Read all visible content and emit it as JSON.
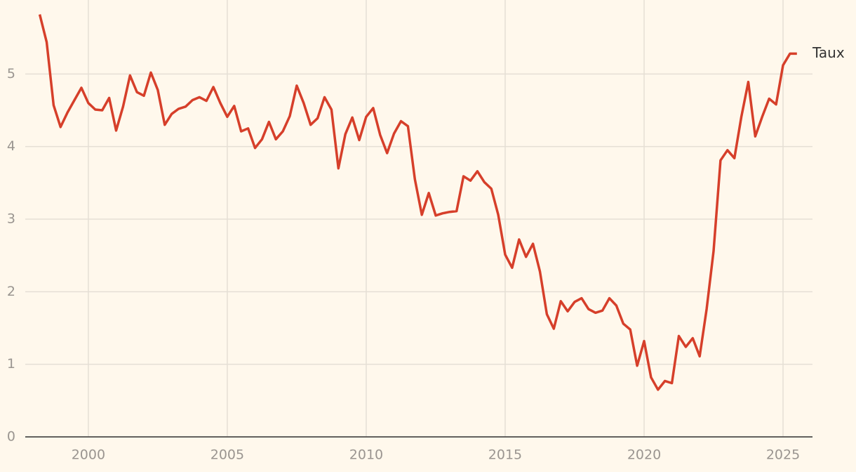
{
  "chart_data": {
    "type": "line",
    "x": [
      1998.25,
      1998.5,
      1998.75,
      1999,
      1999.25,
      1999.5,
      1999.75,
      2000,
      2000.25,
      2000.5,
      2000.75,
      2001,
      2001.25,
      2001.5,
      2001.75,
      2002,
      2002.25,
      2002.5,
      2002.75,
      2003,
      2003.25,
      2003.5,
      2003.75,
      2004,
      2004.25,
      2004.5,
      2004.75,
      2005,
      2005.25,
      2005.5,
      2005.75,
      2006,
      2006.25,
      2006.5,
      2006.75,
      2007,
      2007.25,
      2007.5,
      2007.75,
      2008,
      2008.25,
      2008.5,
      2008.75,
      2009,
      2009.25,
      2009.5,
      2009.75,
      2010,
      2010.25,
      2010.5,
      2010.75,
      2011,
      2011.25,
      2011.5,
      2011.75,
      2012,
      2012.25,
      2012.5,
      2012.75,
      2013,
      2013.25,
      2013.5,
      2013.75,
      2014,
      2014.25,
      2014.5,
      2014.75,
      2015,
      2015.25,
      2015.5,
      2015.75,
      2016,
      2016.25,
      2016.5,
      2016.75,
      2017,
      2017.25,
      2017.5,
      2017.75,
      2018,
      2018.25,
      2018.5,
      2018.75,
      2019,
      2019.25,
      2019.5,
      2019.75,
      2020,
      2020.25,
      2020.5,
      2020.75,
      2021,
      2021.25,
      2021.5,
      2021.75,
      2022,
      2022.25,
      2022.5,
      2022.75,
      2023,
      2023.25,
      2023.5,
      2023.75,
      2024,
      2024.25,
      2024.5,
      2024.75,
      2025,
      2025.25,
      2025.5
    ],
    "series": [
      {
        "name": "Taux",
        "color": "#d63f2a",
        "values": [
          5.82,
          5.44,
          4.57,
          4.27,
          4.47,
          4.64,
          4.81,
          4.6,
          4.51,
          4.5,
          4.67,
          4.22,
          4.55,
          4.98,
          4.75,
          4.7,
          5.02,
          4.78,
          4.3,
          4.45,
          4.52,
          4.55,
          4.64,
          4.68,
          4.63,
          4.82,
          4.6,
          4.41,
          4.56,
          4.21,
          4.25,
          3.98,
          4.1,
          4.34,
          4.1,
          4.21,
          4.42,
          4.84,
          4.6,
          4.3,
          4.39,
          4.68,
          4.51,
          3.7,
          4.17,
          4.4,
          4.09,
          4.41,
          4.53,
          4.16,
          3.91,
          4.18,
          4.35,
          4.28,
          3.55,
          3.06,
          3.36,
          3.05,
          3.08,
          3.1,
          3.11,
          3.59,
          3.53,
          3.66,
          3.51,
          3.42,
          3.06,
          2.51,
          2.33,
          2.72,
          2.48,
          2.66,
          2.28,
          1.69,
          1.49,
          1.87,
          1.73,
          1.86,
          1.91,
          1.76,
          1.71,
          1.74,
          1.91,
          1.81,
          1.56,
          1.48,
          0.98,
          1.32,
          0.82,
          0.65,
          0.77,
          0.74,
          1.39,
          1.24,
          1.36,
          1.11,
          1.76,
          2.56,
          3.81,
          3.95,
          3.84,
          4.41,
          4.89,
          4.14,
          4.41,
          4.66,
          4.58,
          5.12,
          5.28,
          5.28
        ]
      }
    ],
    "xlim": [
      1997.73,
      2026.06
    ],
    "xticks": [
      2000,
      2005,
      2010,
      2015,
      2020,
      2025
    ],
    "ylim": [
      0,
      6
    ],
    "yticks": [
      0,
      1,
      2,
      3,
      4,
      5
    ],
    "grid": true
  }
}
